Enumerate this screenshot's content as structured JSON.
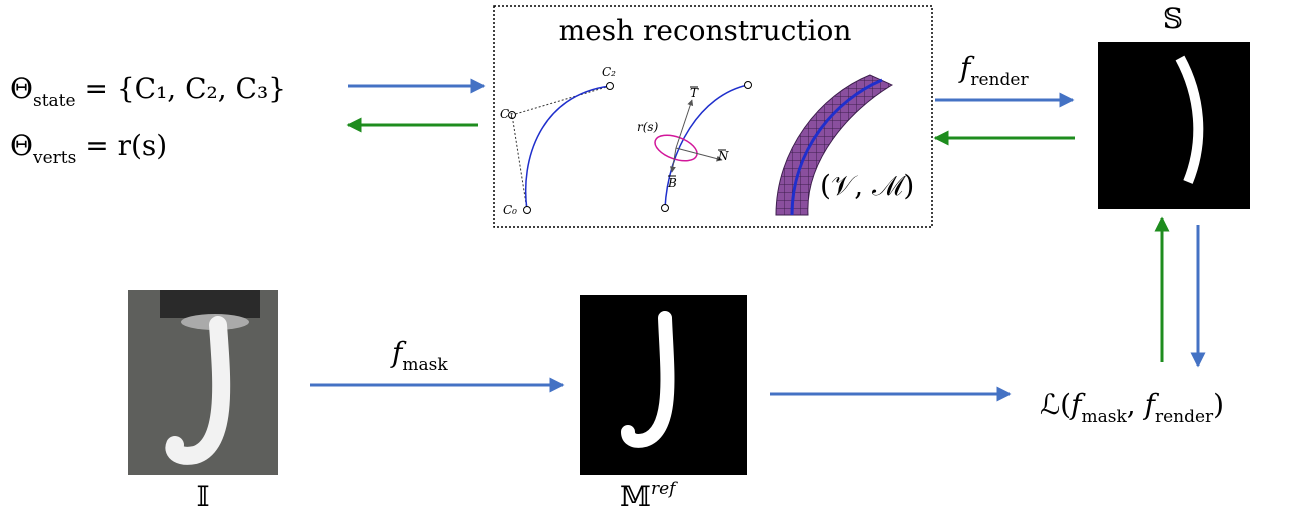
{
  "state": {
    "symbol": "Θ",
    "sub": "state",
    "rest": " = {C₁, C₂, C₃}"
  },
  "verts": {
    "symbol": "Θ",
    "sub": "verts",
    "rest": " = r(s)"
  },
  "mesh": {
    "title": "mesh reconstruction",
    "control_points": [
      "C₂",
      "C₁",
      "C₀"
    ],
    "frame": {
      "curve": "r(s)",
      "tangent": "T",
      "normal": "N",
      "binormal": "B"
    },
    "mesh_label": "(𝒱, ℳ)"
  },
  "render": {
    "symbol": "f",
    "sub": "render"
  },
  "silhouette": "𝕊",
  "image": "𝕀",
  "mask_fn": {
    "symbol": "f",
    "sub": "mask"
  },
  "reference": {
    "symbol": "𝕄",
    "sup": "ref"
  },
  "loss": {
    "prefix": "ℒ(",
    "f1": "f",
    "sub1": "mask",
    "sep": ", ",
    "f2": "f",
    "sub2": "render",
    "suffix": ")"
  }
}
